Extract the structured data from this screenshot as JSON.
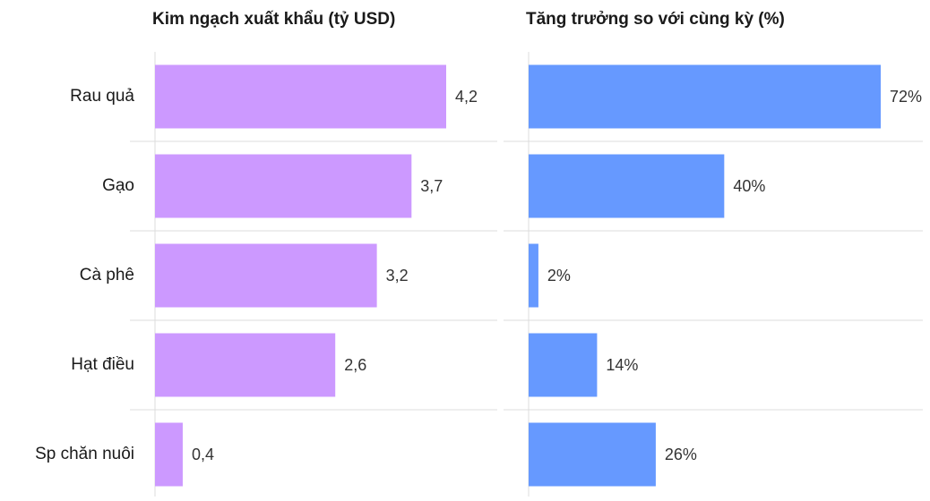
{
  "chart_data": {
    "type": "bar",
    "orientation": "horizontal",
    "categories": [
      "Rau quả",
      "Gạo",
      "Cà phê",
      "Hạt điều",
      "Sp chăn nuôi"
    ],
    "series": [
      {
        "name": "Kim ngạch xuất khẩu (tỷ USD)",
        "color": "#cc99ff",
        "values": [
          4.2,
          3.7,
          3.2,
          2.6,
          0.4
        ],
        "value_labels": [
          "4,2",
          "3,7",
          "3,2",
          "2,6",
          "0,4"
        ]
      },
      {
        "name": "Tăng trưởng so với cùng kỳ (%)",
        "color": "#6699ff",
        "values": [
          72,
          40,
          2,
          14,
          26
        ],
        "value_labels": [
          "72%",
          "40%",
          "2%",
          "14%",
          "26%"
        ]
      }
    ]
  }
}
